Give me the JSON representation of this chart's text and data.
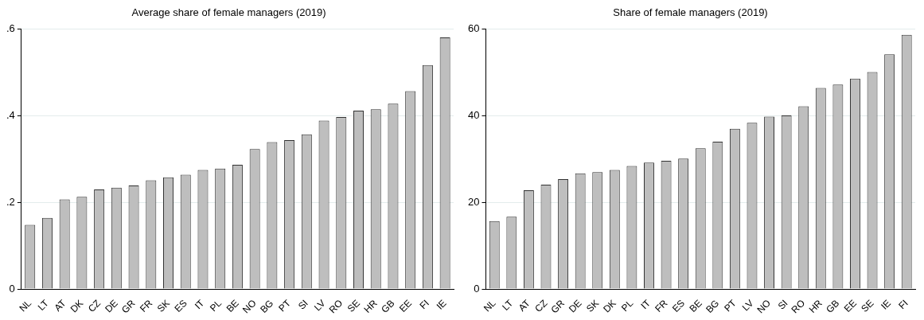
{
  "chart_data": [
    {
      "type": "bar",
      "title": "Average share of female managers (2019)",
      "categories": [
        "NL",
        "LT",
        "AT",
        "DK",
        "CZ",
        "DE",
        "GR",
        "FR",
        "SK",
        "ES",
        "IT",
        "PL",
        "BE",
        "NO",
        "BG",
        "PT",
        "SI",
        "LV",
        "RO",
        "SE",
        "HR",
        "GB",
        "EE",
        "FI",
        "IE"
      ],
      "values": [
        0.148,
        0.164,
        0.207,
        0.213,
        0.23,
        0.234,
        0.239,
        0.251,
        0.258,
        0.264,
        0.275,
        0.278,
        0.287,
        0.323,
        0.339,
        0.344,
        0.357,
        0.389,
        0.397,
        0.412,
        0.415,
        0.428,
        0.457,
        0.517,
        0.581
      ],
      "color": "#bebebe",
      "ylim": [
        0,
        0.6
      ],
      "yticks": [
        {
          "value": 0,
          "label": "0"
        },
        {
          "value": 0.2,
          "label": ".2"
        },
        {
          "value": 0.4,
          "label": ".4"
        },
        {
          "value": 0.6,
          "label": ".6"
        }
      ],
      "grid": "y"
    },
    {
      "type": "bar",
      "title": "Share of female managers (2019)",
      "categories": [
        "NL",
        "LT",
        "AT",
        "CZ",
        "GR",
        "DE",
        "SK",
        "DK",
        "PL",
        "IT",
        "FR",
        "ES",
        "BE",
        "BG",
        "PT",
        "LV",
        "NO",
        "SI",
        "RO",
        "HR",
        "GB",
        "EE",
        "SE",
        "IE",
        "FI"
      ],
      "values": [
        15.7,
        16.7,
        22.8,
        24.1,
        25.4,
        26.7,
        27.0,
        27.5,
        28.4,
        29.2,
        29.6,
        30.1,
        32.5,
        34.0,
        37.0,
        38.4,
        39.8,
        40.1,
        42.2,
        46.4,
        47.2,
        48.6,
        50.1,
        54.2,
        58.7
      ],
      "color": "#bebebe",
      "ylim": [
        0,
        60
      ],
      "yticks": [
        0,
        20,
        40,
        60
      ],
      "grid": "y"
    }
  ]
}
